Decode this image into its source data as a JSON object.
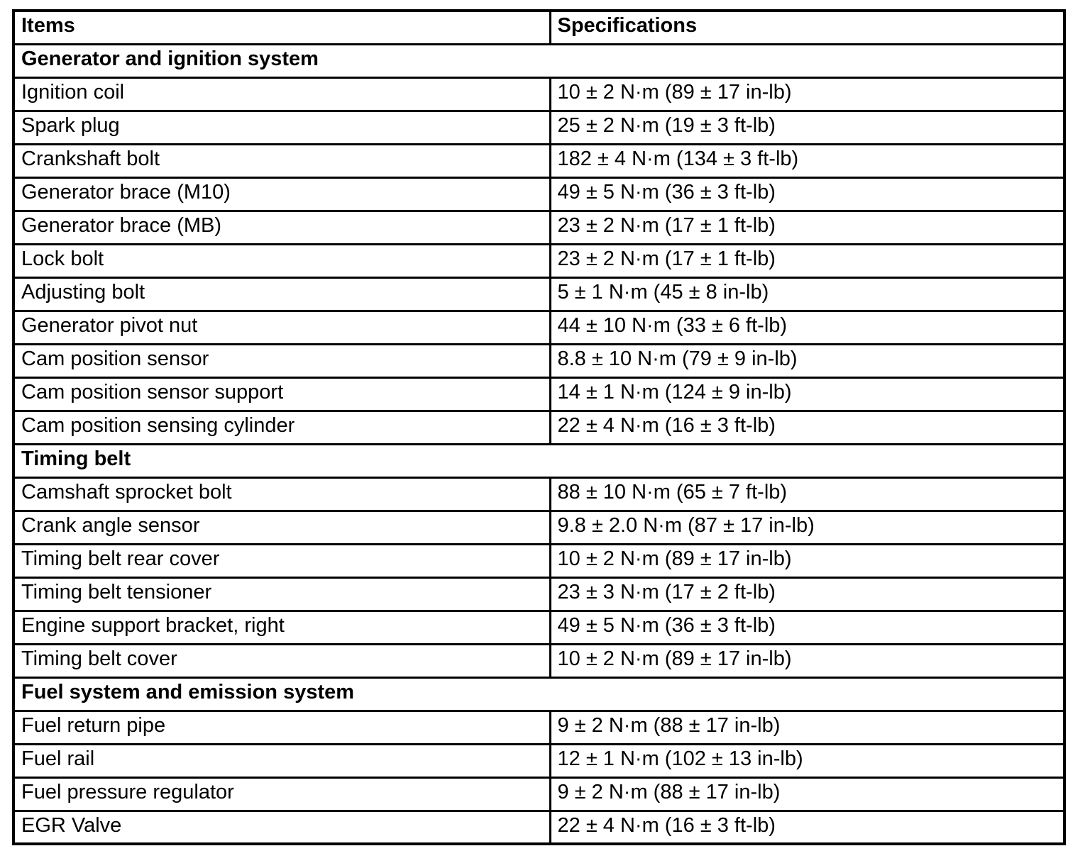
{
  "page": {
    "background_color": "#ffffff",
    "text_color": "#000000",
    "border_color": "#000000"
  },
  "table": {
    "columns": [
      "Items",
      "Specifications"
    ],
    "sections": [
      {
        "title": "Generator and ignition system",
        "rows": [
          {
            "item": "Ignition coil",
            "spec": "10 ± 2 N·m (89 ± 17 in-lb)"
          },
          {
            "item": "Spark plug",
            "spec": "25 ± 2 N·m (19 ± 3 ft-lb)"
          },
          {
            "item": "Crankshaft bolt",
            "spec": "182 ± 4 N·m (134 ± 3 ft-lb)"
          },
          {
            "item": "Generator brace (M10)",
            "spec": "49 ± 5 N·m (36 ± 3 ft-lb)"
          },
          {
            "item": "Generator brace (MB)",
            "spec": "23 ± 2 N·m (17 ± 1 ft-lb)"
          },
          {
            "item": "Lock bolt",
            "spec": "23 ± 2 N·m (17 ± 1 ft-lb)"
          },
          {
            "item": "Adjusting bolt",
            "spec": "5 ± 1 N·m (45 ± 8 in-lb)"
          },
          {
            "item": "Generator pivot nut",
            "spec": "44 ± 10 N·m (33 ± 6 ft-lb)"
          },
          {
            "item": "Cam position sensor",
            "spec": "8.8 ± 10 N·m (79 ± 9 in-lb)"
          },
          {
            "item": "Cam position sensor support",
            "spec": "14 ± 1 N·m (124 ± 9 in-lb)"
          },
          {
            "item": "Cam position sensing cylinder",
            "spec": "22 ± 4 N·m (16 ± 3 ft-lb)"
          }
        ]
      },
      {
        "title": "Timing belt",
        "rows": [
          {
            "item": "Camshaft sprocket bolt",
            "spec": "88 ± 10 N·m (65 ± 7 ft-lb)"
          },
          {
            "item": "Crank angle sensor",
            "spec": "9.8 ± 2.0 N·m (87 ± 17 in-lb)"
          },
          {
            "item": "Timing belt rear cover",
            "spec": "10 ± 2 N·m (89 ± 17 in-lb)"
          },
          {
            "item": "Timing belt tensioner",
            "spec": "23 ± 3 N·m (17 ± 2 ft-lb)"
          },
          {
            "item": "Engine support bracket, right",
            "spec": "49 ± 5 N·m (36 ± 3 ft-lb)"
          },
          {
            "item": "Timing belt cover",
            "spec": "10 ± 2 N·m (89 ± 17 in-lb)"
          }
        ]
      },
      {
        "title": "Fuel system and emission system",
        "rows": [
          {
            "item": "Fuel return pipe",
            "spec": "9 ± 2 N·m (88 ± 17 in-lb)"
          },
          {
            "item": "Fuel rail",
            "spec": "12 ± 1 N·m (102 ± 13 in-lb)"
          },
          {
            "item": "Fuel pressure regulator",
            "spec": "9 ± 2 N·m (88 ± 17 in-lb)"
          },
          {
            "item": "EGR Valve",
            "spec": "22 ± 4 N·m (16 ± 3 ft-lb)"
          }
        ]
      }
    ]
  }
}
